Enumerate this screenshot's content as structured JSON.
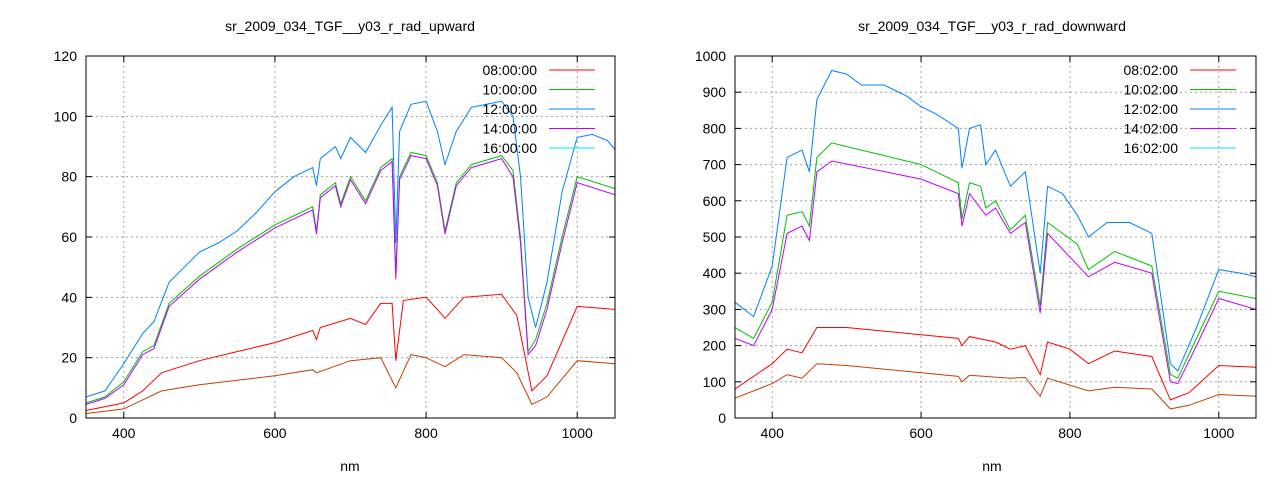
{
  "chart_data": [
    {
      "type": "line",
      "title": "sr_2009_034_TGF__y03_r_rad_upward",
      "xlabel": "nm",
      "ylabel": "",
      "xlim": [
        350,
        1050
      ],
      "ylim": [
        0,
        120
      ],
      "xticks": [
        400,
        600,
        800,
        1000
      ],
      "yticks": [
        0,
        20,
        40,
        60,
        80,
        100,
        120
      ],
      "grid": true,
      "legend_position": "top-right",
      "series": [
        {
          "name": "08:00:00",
          "color": "#ff0000",
          "x": [
            350,
            400,
            425,
            450,
            500,
            550,
            600,
            650,
            655,
            660,
            700,
            720,
            740,
            755,
            760,
            770,
            800,
            815,
            825,
            850,
            900,
            920,
            940,
            960,
            1000,
            1050
          ],
          "y": [
            2.5,
            5,
            9,
            15,
            19,
            22,
            25,
            29,
            26,
            30,
            33,
            31,
            38,
            38,
            19,
            39,
            40,
            36,
            33,
            40,
            41,
            34,
            9,
            14,
            37,
            36
          ]
        },
        {
          "name": "10:00:00",
          "color": "#00c000",
          "x": [
            350,
            375,
            400,
            425,
            440,
            460,
            500,
            550,
            600,
            650,
            655,
            660,
            680,
            687,
            700,
            720,
            740,
            755,
            760,
            765,
            780,
            800,
            815,
            825,
            840,
            860,
            900,
            915,
            925,
            935,
            945,
            960,
            980,
            1000,
            1050
          ],
          "y": [
            5,
            7,
            12,
            22,
            24,
            38,
            47,
            56,
            64,
            70,
            62,
            74,
            78,
            71,
            80,
            72,
            83,
            86,
            48,
            80,
            88,
            87,
            78,
            62,
            78,
            84,
            87,
            82,
            60,
            22,
            26,
            38,
            60,
            80,
            76
          ]
        },
        {
          "name": "12:00:00",
          "color": "#0080ff",
          "x": [
            350,
            375,
            400,
            425,
            440,
            460,
            480,
            500,
            525,
            550,
            575,
            600,
            625,
            650,
            655,
            660,
            680,
            687,
            700,
            720,
            740,
            755,
            760,
            765,
            780,
            800,
            815,
            825,
            840,
            860,
            880,
            900,
            915,
            925,
            935,
            945,
            960,
            980,
            1000,
            1020,
            1040,
            1050
          ],
          "y": [
            7,
            9,
            18,
            28,
            32,
            45,
            50,
            55,
            58,
            62,
            68,
            75,
            80,
            83,
            77,
            86,
            90,
            86,
            93,
            88,
            97,
            103,
            58,
            95,
            104,
            105,
            95,
            84,
            95,
            103,
            104,
            105,
            100,
            80,
            40,
            30,
            45,
            75,
            93,
            94,
            92,
            89
          ]
        },
        {
          "name": "14:00:00",
          "color": "#c000ff",
          "x": [
            350,
            375,
            400,
            425,
            440,
            460,
            500,
            550,
            600,
            650,
            655,
            660,
            680,
            687,
            700,
            720,
            740,
            755,
            760,
            765,
            780,
            800,
            815,
            825,
            840,
            860,
            900,
            915,
            925,
            935,
            945,
            960,
            980,
            1000,
            1050
          ],
          "y": [
            4.5,
            6.5,
            11,
            21,
            23,
            37,
            46,
            55,
            63,
            69,
            61,
            73,
            77,
            70,
            79,
            71,
            82,
            85,
            46,
            79,
            87,
            86,
            77,
            61,
            77,
            83,
            86,
            80,
            58,
            21,
            24,
            36,
            58,
            78,
            74
          ]
        },
        {
          "name": "16:00:00",
          "color": "#00eeee",
          "x": [],
          "y": []
        },
        {
          "name": "",
          "color": "#c04000",
          "x": [
            350,
            400,
            450,
            500,
            600,
            650,
            655,
            700,
            740,
            760,
            780,
            800,
            825,
            850,
            900,
            920,
            940,
            960,
            1000,
            1050
          ],
          "y": [
            1.5,
            3,
            9,
            11,
            14,
            16,
            15,
            19,
            20,
            10,
            21,
            20,
            17,
            21,
            20,
            15,
            4.5,
            7,
            19,
            18
          ]
        }
      ]
    },
    {
      "type": "line",
      "title": "sr_2009_034_TGF__y03_r_rad_downward",
      "xlabel": "nm",
      "ylabel": "",
      "xlim": [
        350,
        1050
      ],
      "ylim": [
        0,
        1000
      ],
      "xticks": [
        400,
        600,
        800,
        1000
      ],
      "yticks": [
        0,
        100,
        200,
        300,
        400,
        500,
        600,
        700,
        800,
        900,
        1000
      ],
      "grid": true,
      "legend_position": "top-right",
      "series": [
        {
          "name": "08:02:00",
          "color": "#ff0000",
          "x": [
            350,
            400,
            420,
            440,
            460,
            500,
            600,
            650,
            655,
            665,
            700,
            720,
            740,
            760,
            770,
            800,
            825,
            860,
            910,
            935,
            960,
            1000,
            1050
          ],
          "y": [
            80,
            150,
            190,
            180,
            250,
            250,
            230,
            220,
            200,
            225,
            210,
            190,
            200,
            120,
            210,
            190,
            150,
            185,
            170,
            50,
            70,
            145,
            140
          ]
        },
        {
          "name": "10:02:00",
          "color": "#00c000",
          "x": [
            350,
            375,
            400,
            420,
            440,
            450,
            460,
            480,
            520,
            600,
            650,
            655,
            665,
            680,
            687,
            700,
            720,
            740,
            760,
            770,
            810,
            825,
            860,
            910,
            935,
            945,
            970,
            1000,
            1050
          ],
          "y": [
            250,
            220,
            320,
            560,
            570,
            530,
            720,
            760,
            740,
            700,
            650,
            550,
            650,
            640,
            580,
            600,
            520,
            560,
            310,
            540,
            480,
            410,
            460,
            420,
            120,
            110,
            220,
            350,
            330
          ]
        },
        {
          "name": "12:02:00",
          "color": "#0080ff",
          "x": [
            350,
            375,
            400,
            420,
            440,
            450,
            460,
            480,
            500,
            520,
            550,
            580,
            600,
            620,
            650,
            655,
            665,
            680,
            687,
            700,
            720,
            740,
            760,
            770,
            790,
            810,
            825,
            850,
            880,
            910,
            935,
            945,
            970,
            1000,
            1030,
            1050
          ],
          "y": [
            320,
            280,
            420,
            720,
            740,
            680,
            880,
            960,
            950,
            920,
            920,
            890,
            860,
            840,
            800,
            690,
            800,
            810,
            700,
            740,
            640,
            680,
            400,
            640,
            620,
            560,
            500,
            540,
            540,
            510,
            150,
            130,
            250,
            410,
            400,
            390
          ]
        },
        {
          "name": "14:02:00",
          "color": "#c000ff",
          "x": [
            350,
            375,
            400,
            420,
            440,
            450,
            460,
            480,
            600,
            650,
            655,
            665,
            687,
            700,
            720,
            740,
            760,
            770,
            825,
            860,
            910,
            935,
            945,
            970,
            1000,
            1050
          ],
          "y": [
            220,
            200,
            300,
            510,
            530,
            490,
            680,
            710,
            660,
            620,
            530,
            620,
            560,
            580,
            510,
            540,
            290,
            510,
            390,
            430,
            400,
            100,
            95,
            200,
            330,
            300
          ]
        },
        {
          "name": "16:02:00",
          "color": "#00eeee",
          "x": [],
          "y": []
        },
        {
          "name": "",
          "color": "#c04000",
          "x": [
            350,
            400,
            420,
            440,
            460,
            500,
            600,
            650,
            655,
            665,
            720,
            740,
            760,
            770,
            825,
            860,
            910,
            935,
            960,
            1000,
            1050
          ],
          "y": [
            55,
            95,
            120,
            110,
            150,
            145,
            125,
            115,
            100,
            118,
            110,
            112,
            60,
            110,
            75,
            85,
            80,
            25,
            35,
            65,
            60
          ]
        }
      ]
    }
  ]
}
